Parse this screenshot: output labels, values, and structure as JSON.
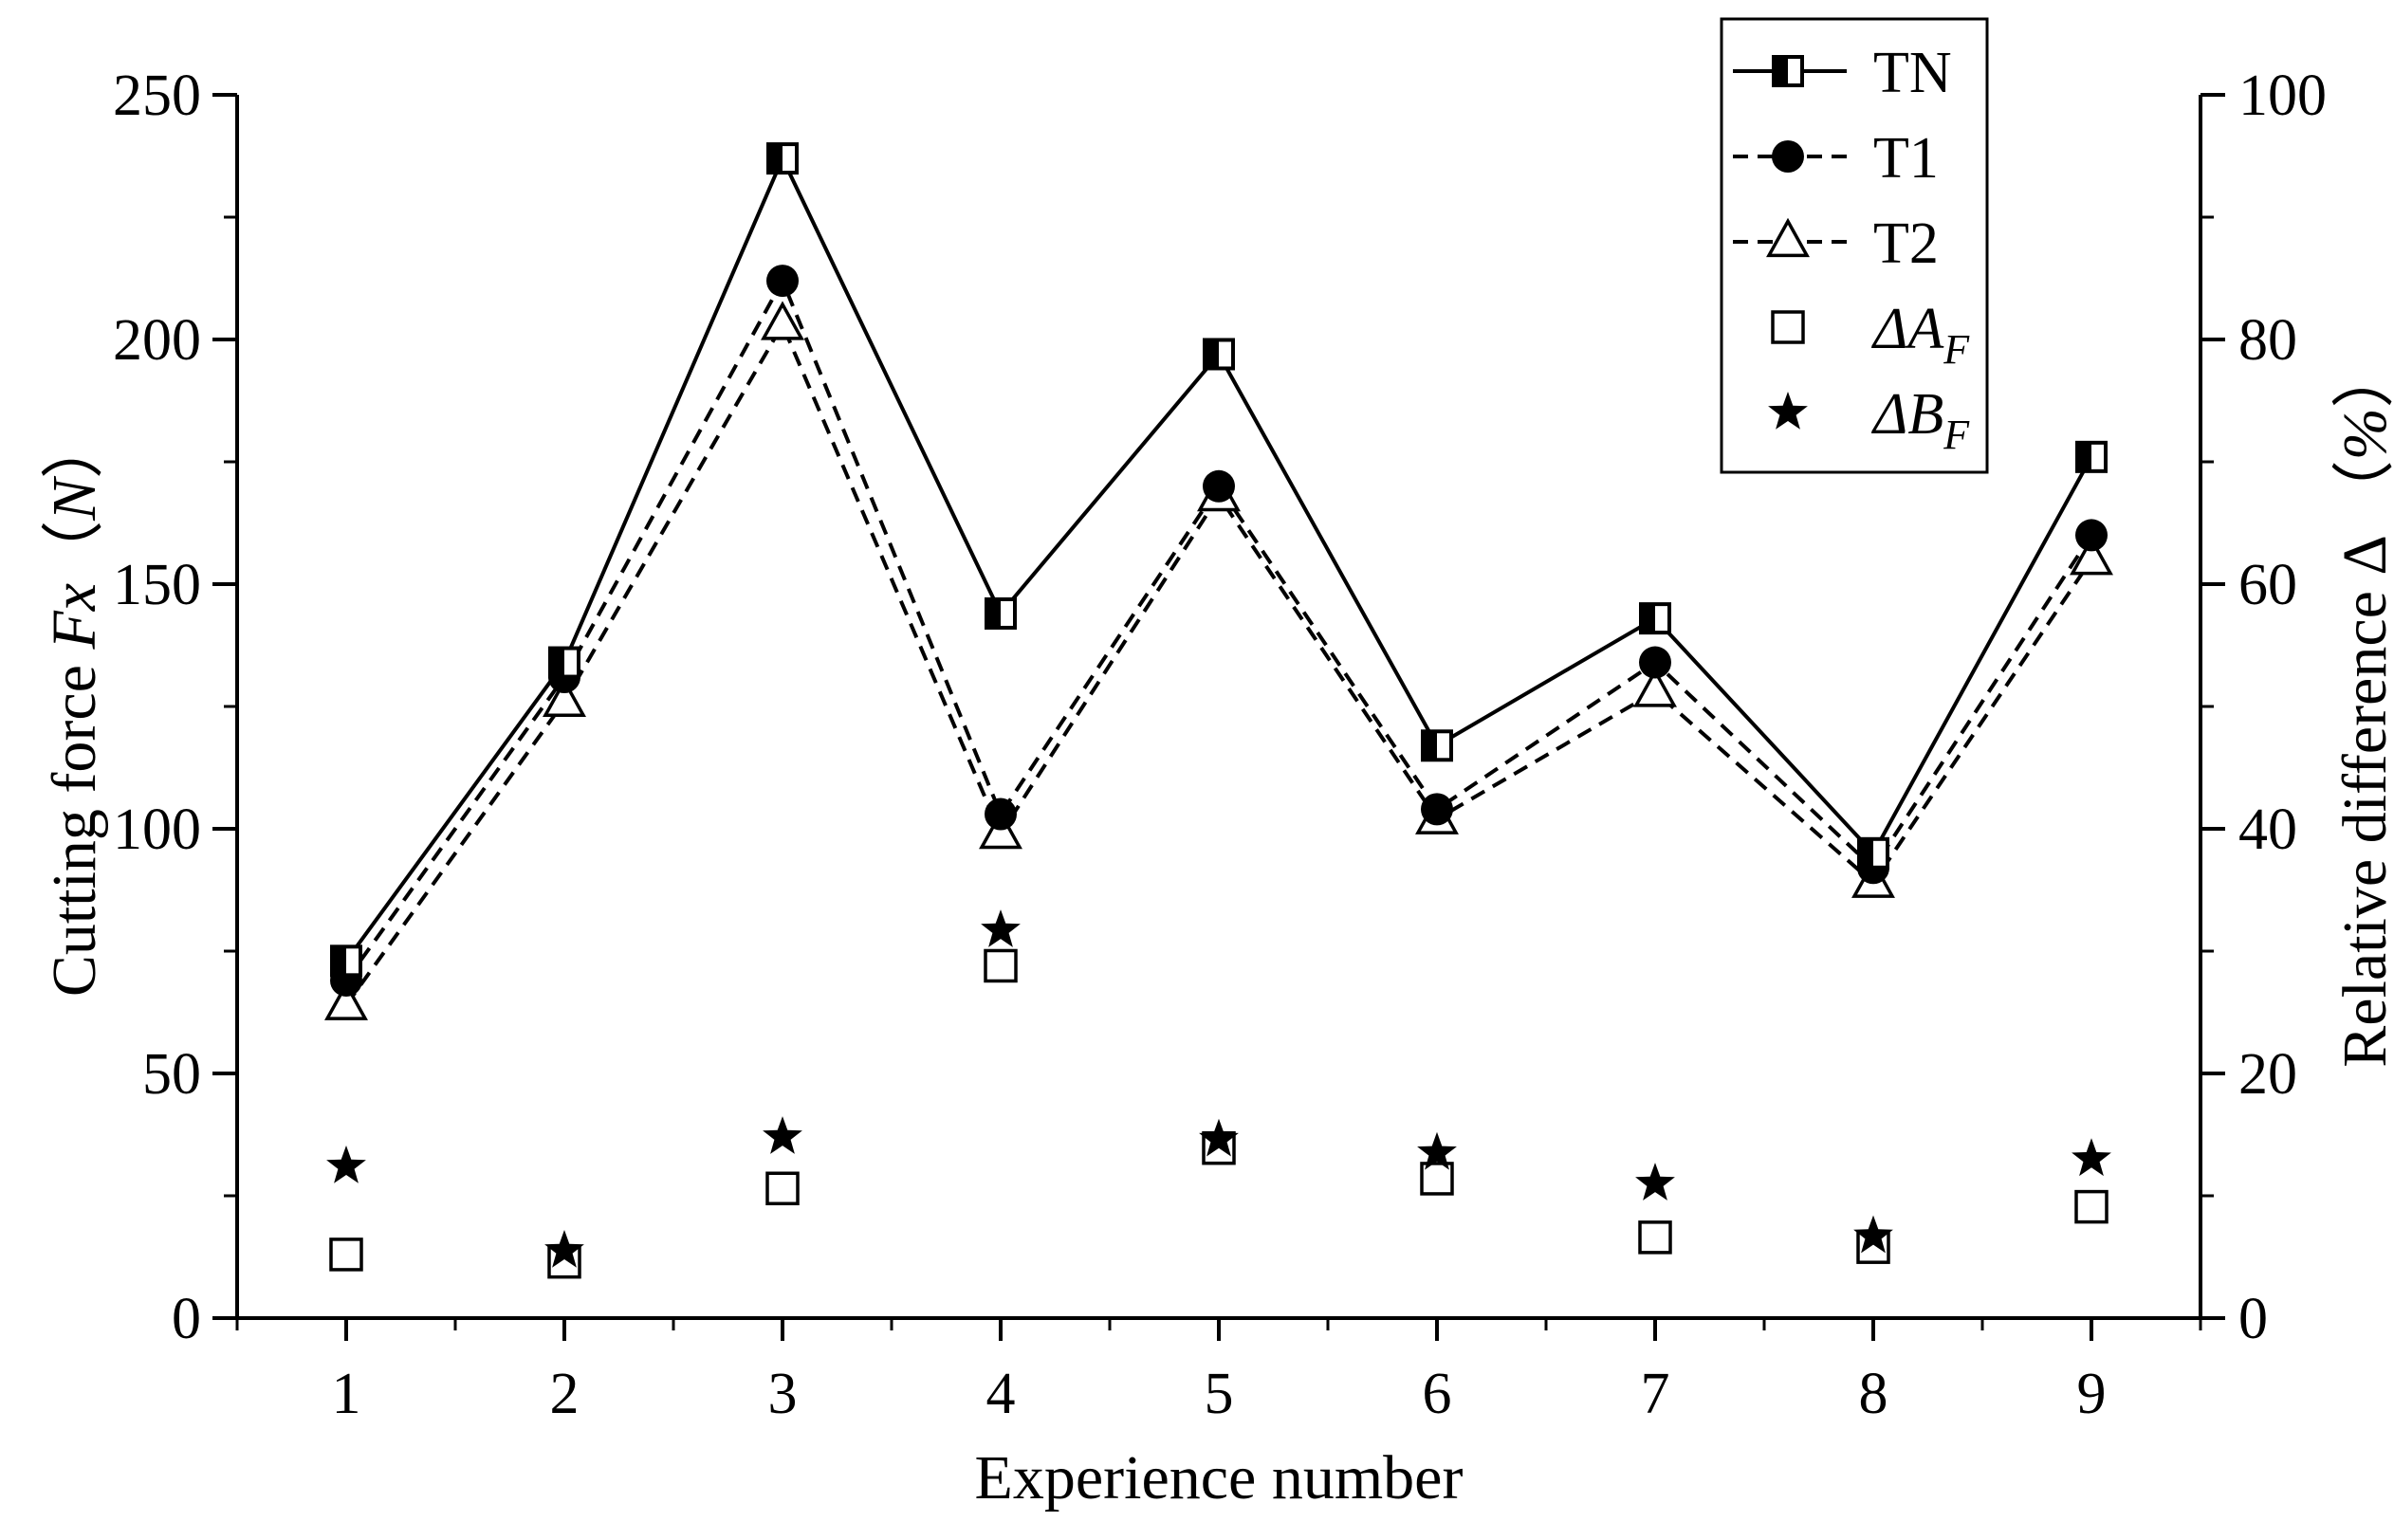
{
  "chart_data": {
    "type": "line",
    "xlabel": "Experience number",
    "ylabel": "Cutting force Fx（N）",
    "ylabel_parts": [
      "Cutting force ",
      "Fx",
      "（",
      "N",
      "）"
    ],
    "y2label": "Relative difference Δ （%）",
    "y2label_parts": [
      "Relative difference Δ ",
      "（",
      "%",
      "）"
    ],
    "x": [
      1,
      2,
      3,
      4,
      5,
      6,
      7,
      8,
      9
    ],
    "x_tick_labels": [
      "1",
      "2",
      "3",
      "4",
      "5",
      "6",
      "7",
      "8",
      "9"
    ],
    "xlim": [
      0.5,
      9.5
    ],
    "ylim": [
      0,
      250
    ],
    "y_ticks": [
      0,
      50,
      100,
      150,
      200,
      250
    ],
    "y_tick_labels": [
      "0",
      "50",
      "100",
      "150",
      "200",
      "250"
    ],
    "y2lim": [
      0,
      100
    ],
    "y2_ticks": [
      0,
      20,
      40,
      60,
      80,
      100
    ],
    "y2_tick_labels": [
      "0",
      "20",
      "40",
      "60",
      "80",
      "100"
    ],
    "grid": false,
    "legend_position": "top-right",
    "series": [
      {
        "name": "TN",
        "axis": "left",
        "line": "solid",
        "marker": "half-filled-square",
        "values": [
          73,
          134,
          237,
          144,
          197,
          117,
          143,
          95,
          176
        ]
      },
      {
        "name": "T1",
        "axis": "left",
        "line": "dashed",
        "marker": "filled-circle",
        "values": [
          69,
          131,
          212,
          103,
          170,
          104,
          134,
          92,
          160
        ]
      },
      {
        "name": "T2",
        "axis": "left",
        "line": "dashed",
        "marker": "open-triangle",
        "values": [
          64,
          126,
          203,
          99,
          168,
          102,
          128,
          89,
          155
        ]
      },
      {
        "name": "ΔA_F",
        "name_parts": [
          "ΔA",
          "F"
        ],
        "axis": "right",
        "line": "none",
        "marker": "open-square",
        "values": [
          5.2,
          4.6,
          10.6,
          28.8,
          13.9,
          11.4,
          6.6,
          5.8,
          9.1
        ]
      },
      {
        "name": "ΔB_F",
        "name_parts": [
          "ΔB",
          "F"
        ],
        "axis": "right",
        "line": "none",
        "marker": "star",
        "values": [
          12.4,
          5.5,
          14.8,
          31.7,
          14.6,
          13.5,
          11.0,
          6.7,
          13.0
        ]
      }
    ]
  }
}
